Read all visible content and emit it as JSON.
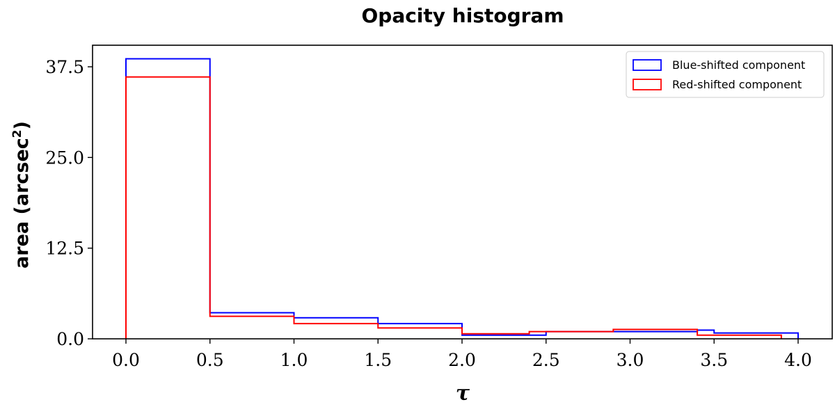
{
  "chart_data": {
    "type": "histogram",
    "title": "Opacity histogram",
    "xlabel": "τ",
    "ylabel": "area (arcsec",
    "ylabel_superscript": "2",
    "ylabel_suffix": ")",
    "xlim": [
      -0.2,
      4.2
    ],
    "ylim": [
      0,
      40
    ],
    "xticks": [
      0.0,
      0.5,
      1.0,
      1.5,
      2.0,
      2.5,
      3.0,
      3.5,
      4.0
    ],
    "xtick_labels": [
      "0.0",
      "0.5",
      "1.0",
      "1.5",
      "2.0",
      "2.5",
      "3.0",
      "3.5",
      "4.0"
    ],
    "yticks": [
      0.0,
      12.5,
      25.0,
      37.5
    ],
    "ytick_labels": [
      "0.0",
      "12.5",
      "25.0",
      "37.5"
    ],
    "legend_position": "top-right",
    "series": [
      {
        "name": "Blue-shifted component",
        "color": "#0000ff",
        "bin_edges": [
          0.0,
          0.5,
          1.0,
          1.5,
          2.0,
          2.5,
          3.0,
          3.4,
          3.5,
          4.0
        ],
        "values": [
          38.6,
          3.6,
          2.9,
          2.1,
          0.5,
          1.0,
          1.0,
          1.2,
          0.8
        ]
      },
      {
        "name": "Red-shifted component",
        "color": "#ff0000",
        "bin_edges": [
          0.0,
          0.5,
          1.0,
          1.5,
          2.0,
          2.4,
          2.9,
          3.4,
          3.5,
          3.9
        ],
        "values": [
          36.1,
          3.1,
          2.1,
          1.5,
          0.7,
          1.0,
          1.3,
          0.5,
          0.5
        ]
      }
    ]
  }
}
